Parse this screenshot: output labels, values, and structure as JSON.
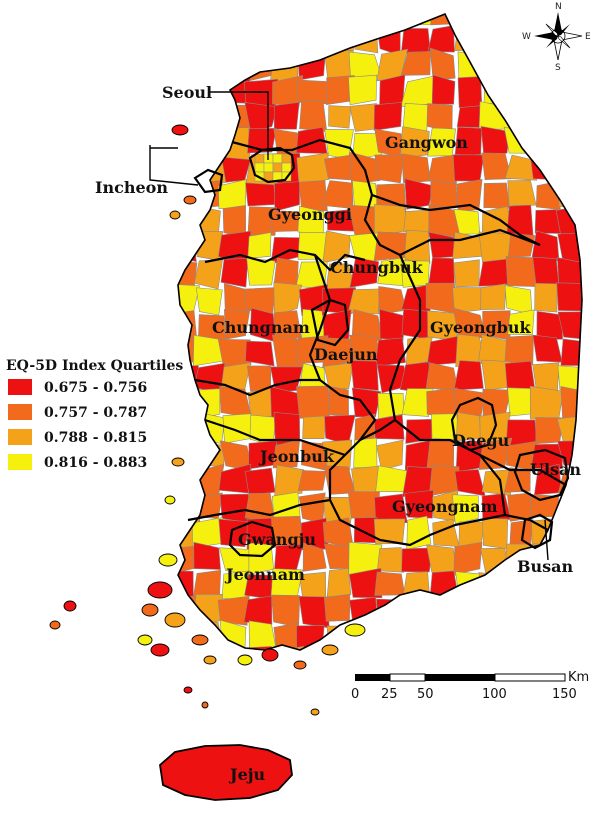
{
  "colors": {
    "q1": "#ee1111",
    "q2": "#f26a1b",
    "q3": "#f5a21b",
    "q4": "#f5f00e",
    "border": "#000000",
    "district_border": "#8a8a8a"
  },
  "regions": [
    {
      "id": "seoul",
      "name": "Seoul"
    },
    {
      "id": "incheon",
      "name": "Incheon"
    },
    {
      "id": "gangwon",
      "name": "Gangwon"
    },
    {
      "id": "gyeonggi",
      "name": "Gyeonggi"
    },
    {
      "id": "chungbuk",
      "name": "Chungbuk"
    },
    {
      "id": "chungnam",
      "name": "Chungnam"
    },
    {
      "id": "daejun",
      "name": "Daejun"
    },
    {
      "id": "gyeongbuk",
      "name": "Gyeongbuk"
    },
    {
      "id": "daegu",
      "name": "Daegu"
    },
    {
      "id": "ulsan",
      "name": "Ulsan"
    },
    {
      "id": "jeonbuk",
      "name": "Jeonbuk"
    },
    {
      "id": "gyeongnam",
      "name": "Gyeongnam"
    },
    {
      "id": "busan",
      "name": "Busan"
    },
    {
      "id": "gwangju",
      "name": "Gwangju"
    },
    {
      "id": "jeonnam",
      "name": "Jeonnam"
    },
    {
      "id": "jeju",
      "name": "Jeju"
    }
  ],
  "legend": {
    "title": "EQ-5D Index Quartiles",
    "items": [
      {
        "label": "0.675 - 0.756",
        "color_key": "q1"
      },
      {
        "label": "0.757 - 0.787",
        "color_key": "q2"
      },
      {
        "label": "0.788 - 0.815",
        "color_key": "q3"
      },
      {
        "label": "0.816 - 0.883",
        "color_key": "q4"
      }
    ]
  },
  "scale_bar": {
    "unit": "Km",
    "ticks": [
      "0",
      "25",
      "50",
      "100",
      "150"
    ]
  },
  "compass": {
    "icon": "compass-rose-icon",
    "n": "N",
    "s": "S",
    "e": "E",
    "w": "W"
  }
}
